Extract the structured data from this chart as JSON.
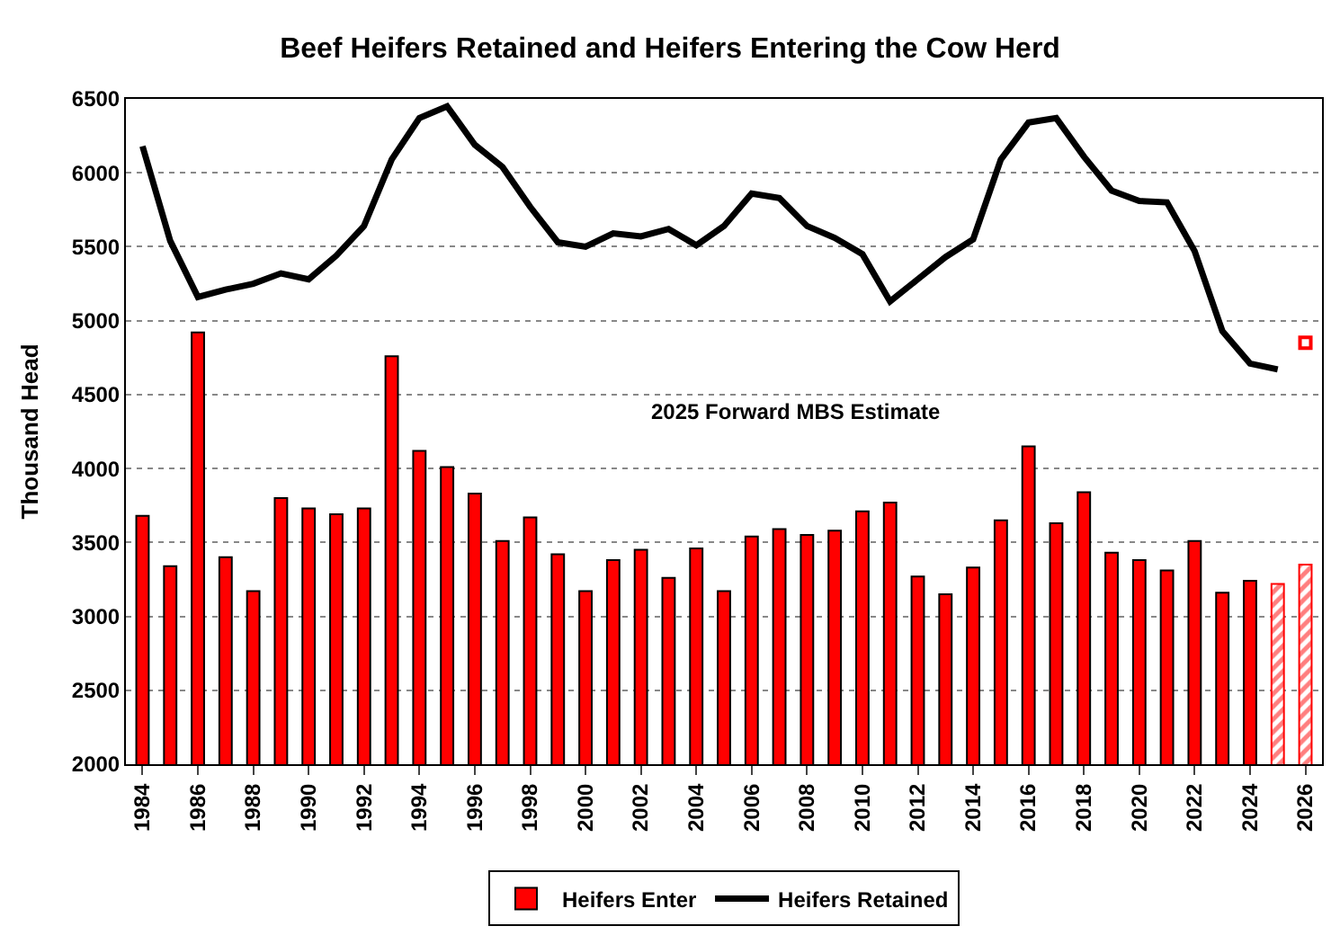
{
  "chart_data": {
    "type": "bar",
    "title": "Beef Heifers Retained and Heifers Entering the Cow Herd",
    "ylabel": "Thousand Head",
    "categories": [
      "1984",
      null,
      "1986",
      null,
      "1988",
      null,
      "1990",
      null,
      "1992",
      null,
      "1994",
      null,
      "1996",
      null,
      "1998",
      null,
      "2000",
      null,
      "2002",
      null,
      "2004",
      null,
      "2006",
      null,
      "2008",
      null,
      "2010",
      null,
      "2012",
      null,
      "2014",
      null,
      "2016",
      null,
      "2018",
      null,
      "2020",
      null,
      "2022",
      null,
      "2024",
      null,
      "2026"
    ],
    "series": [
      {
        "name": "Heifers Enter",
        "color": "#ff0000",
        "values": [
          3680,
          3340,
          4920,
          3400,
          3170,
          3800,
          3730,
          3690,
          3730,
          4760,
          4120,
          4010,
          3830,
          3510,
          3670,
          3420,
          3170,
          3380,
          3450,
          3260,
          3460,
          3170,
          3540,
          3590,
          3550,
          3580,
          3710,
          3770,
          3270,
          3150,
          3330,
          3650,
          4150,
          3630,
          3840,
          3430,
          3380,
          3310,
          3510,
          3160,
          3240,
          null,
          null
        ]
      },
      {
        "color": "#ff0000",
        "values": [
          null,
          null,
          null,
          null,
          null,
          null,
          null,
          null,
          null,
          null,
          null,
          null,
          null,
          null,
          null,
          null,
          null,
          null,
          null,
          null,
          null,
          null,
          null,
          null,
          null,
          null,
          null,
          null,
          null,
          null,
          null,
          null,
          null,
          null,
          null,
          null,
          null,
          null,
          null,
          null,
          null,
          3220,
          3350
        ]
      },
      {
        "name": "Heifers Retained",
        "type": "line",
        "color": "#000000",
        "marker": "none",
        "values": [
          6180,
          5540,
          5160,
          5210,
          5250,
          5320,
          5280,
          5440,
          5640,
          6090,
          6370,
          6450,
          6190,
          6040,
          5770,
          5530,
          5500,
          5590,
          5570,
          5620,
          5510,
          5640,
          5860,
          5830,
          5640,
          5560,
          5450,
          5130,
          5280,
          5430,
          5550,
          6090,
          6340,
          6370,
          6110,
          5880,
          5810,
          5800,
          5470,
          4930,
          4710,
          4670,
          null
        ]
      },
      {
        "type": "scatter",
        "color": "#ff0000",
        "marker": "square",
        "values": [
          null,
          null,
          null,
          null,
          null,
          null,
          null,
          null,
          null,
          null,
          null,
          null,
          null,
          null,
          null,
          null,
          null,
          null,
          null,
          null,
          null,
          null,
          null,
          null,
          null,
          null,
          null,
          null,
          null,
          null,
          null,
          null,
          null,
          null,
          null,
          null,
          null,
          null,
          null,
          null,
          null,
          null,
          4850
        ]
      }
    ],
    "ylim": [
      2000,
      6500
    ],
    "yticks": [
      2000,
      2500,
      3000,
      3500,
      4000,
      4500,
      5000,
      5500,
      6000,
      6500
    ],
    "grid": "y",
    "legend": "bottom",
    "annotations": [
      "2025 Forward MBS Estimate"
    ]
  }
}
